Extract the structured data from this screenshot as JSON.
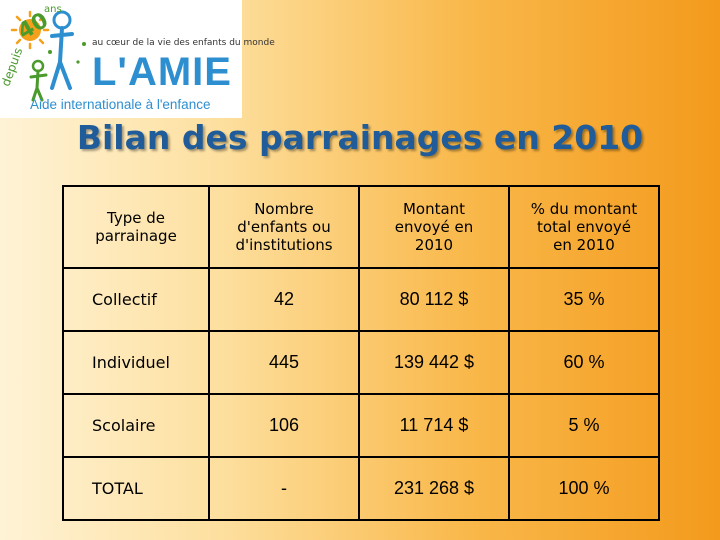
{
  "logo": {
    "anniversary_prefix": "depuis",
    "anniversary_number": "40",
    "anniversary_unit": "ans",
    "tagline": "au cœur de la vie des enfants du monde",
    "name": "L'AMIE",
    "subtitle": "Aide internationale à l'enfance",
    "colors": {
      "blue": "#2e8fd0",
      "green": "#4a9a2c",
      "sun": "#f5a01a"
    }
  },
  "title": "Bilan des parrainages en 2010",
  "table": {
    "headers": [
      [
        "Type de",
        "parrainage"
      ],
      [
        "Nombre",
        "d'enfants ou",
        "d'institutions"
      ],
      [
        "Montant",
        "envoyé en",
        "2010"
      ],
      [
        "% du montant",
        "total envoyé",
        "en 2010"
      ]
    ],
    "rows": [
      [
        "Collectif",
        "42",
        "80 112 $",
        "35 %"
      ],
      [
        "Individuel",
        "445",
        "139 442 $",
        "60 %"
      ],
      [
        "Scolaire",
        "106",
        "11 714 $",
        "5 %"
      ],
      [
        "TOTAL",
        "-",
        "231 268 $",
        "100 %"
      ]
    ]
  }
}
